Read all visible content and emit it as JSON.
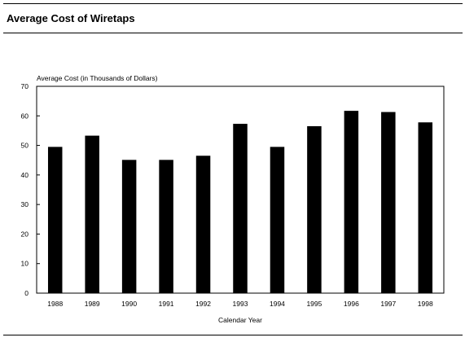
{
  "page_title": "Average Cost of Wiretaps",
  "chart_data": {
    "type": "bar",
    "title": "Average Cost of Wiretaps",
    "ylabel": "Average Cost (in Thousands of Dollars)",
    "xlabel": "Calendar Year",
    "categories": [
      "1988",
      "1989",
      "1990",
      "1991",
      "1992",
      "1993",
      "1994",
      "1995",
      "1996",
      "1997",
      "1998"
    ],
    "values": [
      49.5,
      53.3,
      45.1,
      45.1,
      46.5,
      57.3,
      49.5,
      56.5,
      61.7,
      61.3,
      57.8
    ],
    "yticks": [
      0,
      10,
      20,
      30,
      40,
      50,
      60,
      70
    ],
    "ylim": [
      0,
      70
    ],
    "grid": false,
    "legend": "none",
    "bar_color": "#000000"
  }
}
